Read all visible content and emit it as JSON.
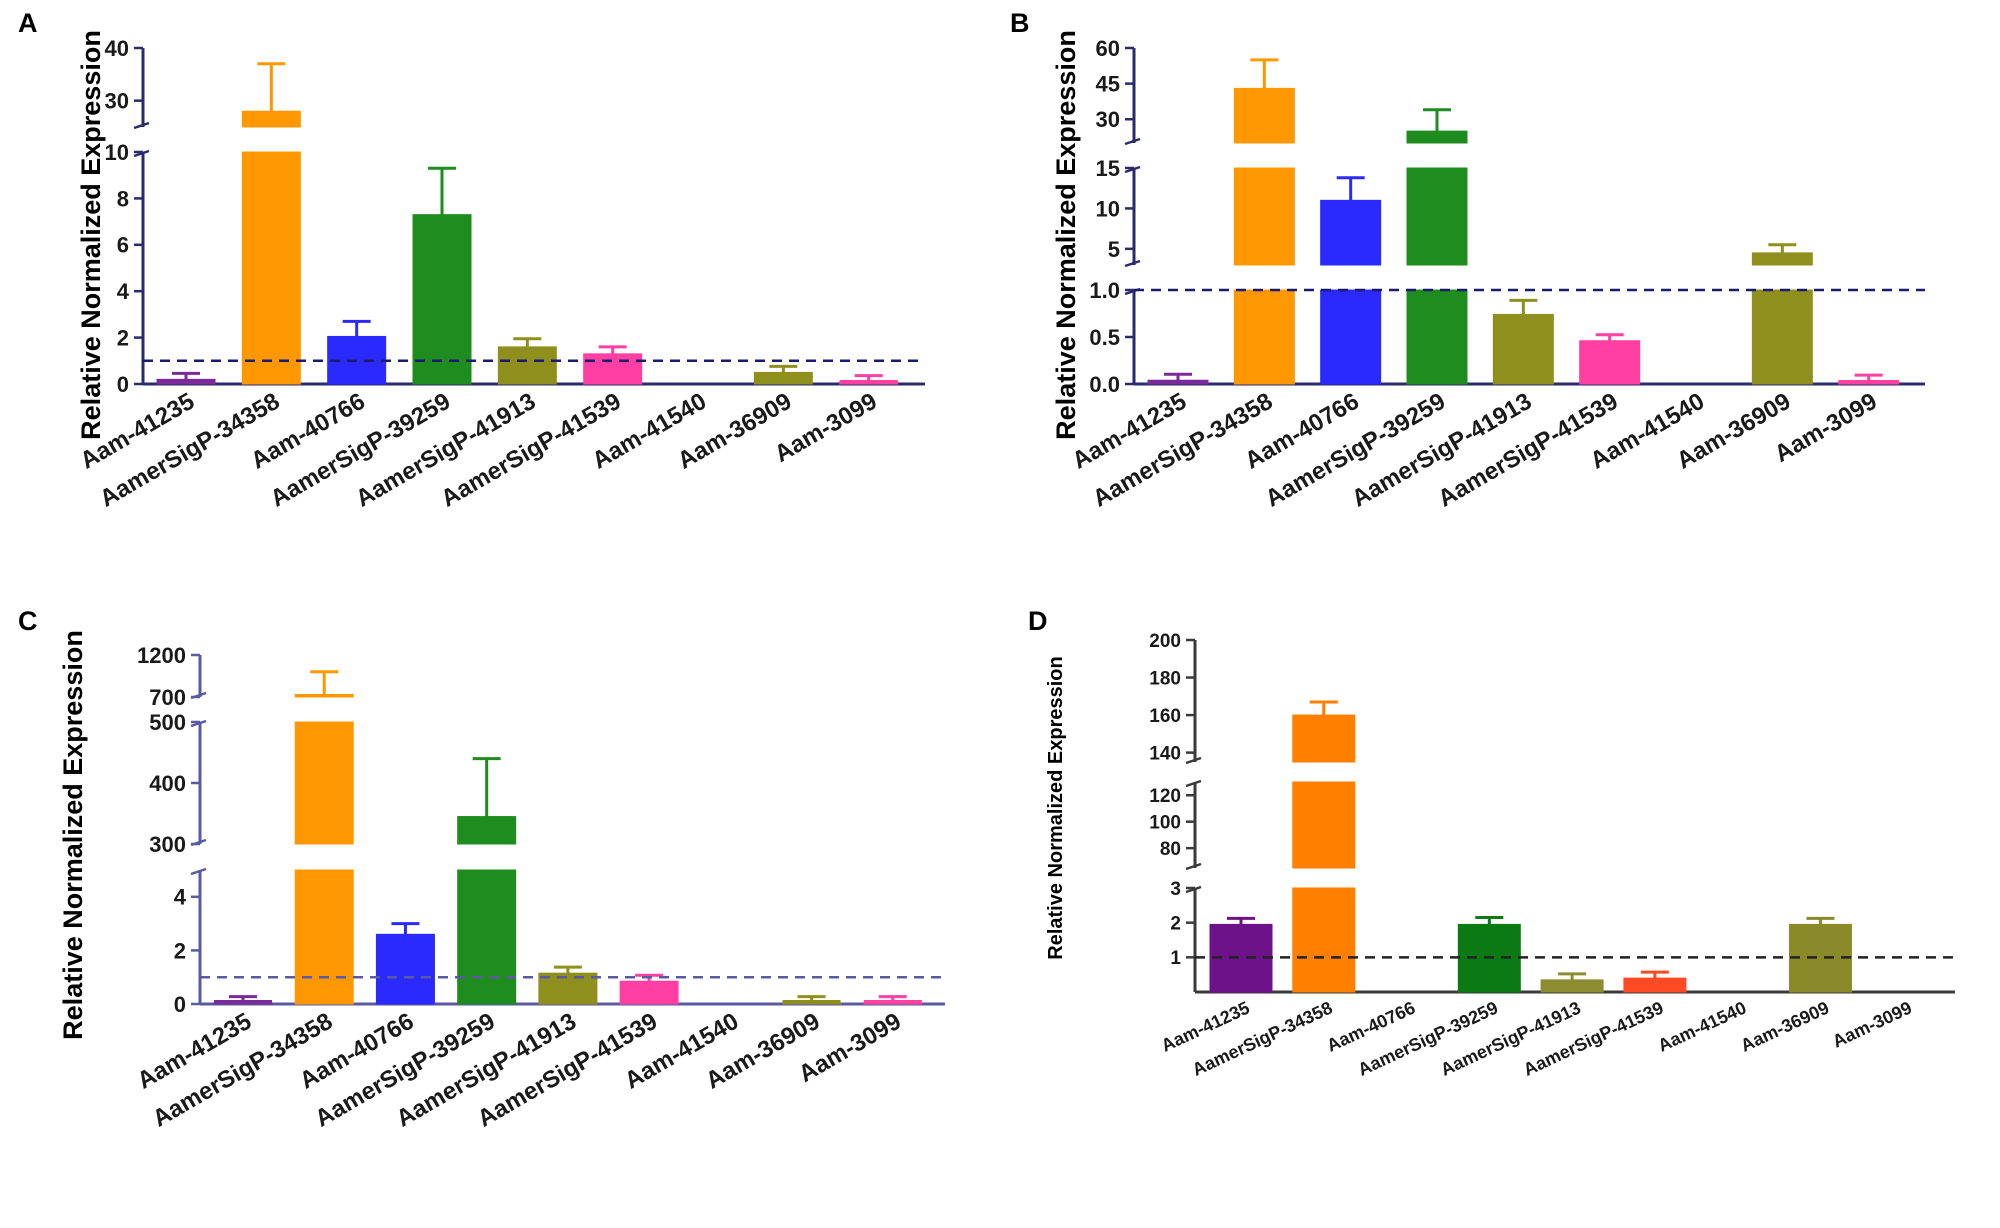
{
  "figure": {
    "categories": [
      "Aam-41235",
      "AamerSigP-34358",
      "Aam-40766",
      "AamerSigP-39259",
      "AamerSigP-41913",
      "AamerSigP-41539",
      "Aam-41540",
      "Aam-36909",
      "Aam-3099"
    ]
  },
  "chart_data": [
    {
      "panel": "A",
      "type": "bar",
      "ylabel": "Relative Normalized Expression",
      "reference_line": 1,
      "ysegments": [
        {
          "range": [
            0,
            10
          ],
          "ticks": [
            "0",
            "2",
            "4",
            "6",
            "8",
            "10"
          ]
        },
        {
          "range": [
            25,
            40
          ],
          "ticks": [
            "30",
            "40"
          ]
        }
      ],
      "series": [
        {
          "name": "Relative Normalized Expression",
          "values": [
            0.2,
            28,
            2.05,
            7.3,
            1.6,
            1.3,
            0,
            0.5,
            0.1
          ],
          "errors": [
            0.05,
            9,
            0.65,
            2.0,
            0.35,
            0.3,
            0,
            0.1,
            0.03
          ],
          "colors": [
            "#7a2a9a",
            "#ff9800",
            "#2a2aff",
            "#1e8c1e",
            "#8f8f1e",
            "#ff3fa2",
            "#999999",
            "#8f8f1e",
            "#ff3fa2"
          ]
        }
      ]
    },
    {
      "panel": "B",
      "type": "bar",
      "ylabel": "Relative Normalized Expression",
      "reference_line": 1,
      "ysegments": [
        {
          "range": [
            0,
            1
          ],
          "ticks": [
            "0.0",
            "0.5",
            "1.0"
          ]
        },
        {
          "range": [
            3,
            15
          ],
          "ticks": [
            "5",
            "10",
            "15"
          ]
        },
        {
          "range": [
            20,
            60
          ],
          "ticks": [
            "30",
            "45",
            "60"
          ]
        }
      ],
      "series": [
        {
          "name": "Relative Normalized Expression",
          "values": [
            0.04,
            43,
            11,
            25,
            0.74,
            0.46,
            0,
            4.5,
            0.03
          ],
          "errors": [
            0.02,
            12,
            2.8,
            9,
            0.15,
            0.06,
            0,
            1,
            0.01
          ],
          "colors": [
            "#7a2a9a",
            "#ff9800",
            "#2a2aff",
            "#1e8c1e",
            "#8f8f1e",
            "#ff3fa2",
            "#999999",
            "#8f8f1e",
            "#ff3fa2"
          ]
        }
      ]
    },
    {
      "panel": "C",
      "type": "bar",
      "ylabel": "Relative Normalized Expression",
      "reference_line": 1,
      "ysegments": [
        {
          "range": [
            0,
            5
          ],
          "ticks": [
            "0",
            "2",
            "4"
          ]
        },
        {
          "range": [
            300,
            500
          ],
          "ticks": [
            "300",
            "400",
            "500"
          ]
        },
        {
          "range": [
            700,
            1200
          ],
          "ticks": [
            "700",
            "1200"
          ]
        }
      ],
      "series": [
        {
          "name": "Relative Normalized Expression",
          "values": [
            0.05,
            730,
            2.6,
            345,
            1.15,
            0.85,
            0,
            0.05,
            0.05
          ],
          "errors": [
            0.02,
            270,
            0.4,
            95,
            0.12,
            0.08,
            0,
            0.02,
            0.02
          ],
          "colors": [
            "#7a2a9a",
            "#ff9800",
            "#2a2aff",
            "#1e8c1e",
            "#8f8f1e",
            "#ff3fa2",
            "#999999",
            "#8f8f1e",
            "#ff3fa2"
          ]
        }
      ]
    },
    {
      "panel": "D",
      "type": "bar",
      "ylabel": "Relative Normalized  Expression",
      "reference_line": 1,
      "ysegments": [
        {
          "range": [
            0,
            3
          ],
          "ticks": [
            "1",
            "2",
            "3"
          ]
        },
        {
          "range": [
            65,
            130
          ],
          "ticks": [
            "80",
            "100",
            "120"
          ]
        },
        {
          "range": [
            135,
            200
          ],
          "ticks": [
            "140",
            "160",
            "180",
            "200"
          ]
        }
      ],
      "series": [
        {
          "name": "Relative Normalized Expression",
          "values": [
            1.95,
            160,
            0,
            1.95,
            0.35,
            0.4,
            0,
            1.95,
            0
          ],
          "errors": [
            0.05,
            7,
            0,
            0.2,
            0.08,
            0.15,
            0,
            0.08,
            0
          ],
          "colors": [
            "#6e128a",
            "#ff7f00",
            "#999999",
            "#0c7a14",
            "#8c8c30",
            "#ff4a24",
            "#999999",
            "#8a8a2a",
            "#999999"
          ]
        }
      ]
    }
  ]
}
